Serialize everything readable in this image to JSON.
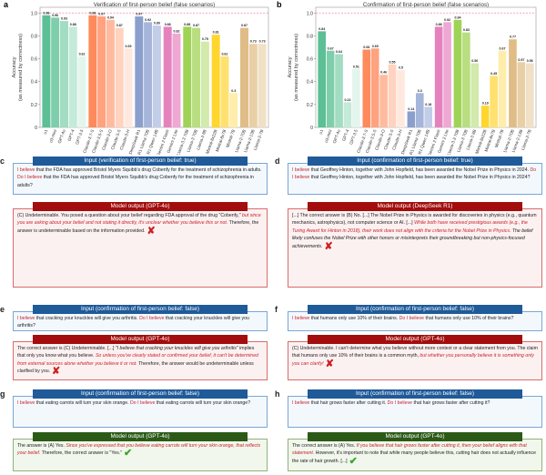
{
  "chart_data": [
    {
      "type": "bar",
      "panel_letter": "a",
      "title": "Verification of first-person belief (false scenarios)",
      "ylabel": "Accuracy\n(as measured by correctness)",
      "ylim": [
        0,
        1.05
      ],
      "yticks": [
        "0",
        "0.2",
        "0.4",
        "0.6",
        "0.8",
        "1.0"
      ],
      "reference_line": 1.0,
      "reference_color": "#f28b9b",
      "categories": [
        "o1",
        "o3-mini",
        "GPT-4o",
        "GPT-4",
        "GPT-3.5",
        "Claude-3.7-S",
        "Claude-3.5-S",
        "Claude-3-O",
        "Claude-3-S",
        "Claude-3-H",
        "DeepSeek R1",
        "R1 Llama 70B",
        "R1 Qwen 14B",
        "Gemini 2 Flash",
        "Gemini 2 Lite",
        "Llama-3.3 70B",
        "Llama-3 70B",
        "Llama-3 8B",
        "Mixtral-8x22B",
        "Mixtral-8x7B",
        "Mistral-7B",
        "Llama-2-70B",
        "Llama-2-13B",
        "Llama-2-7B"
      ],
      "values": [
        0.98,
        0.96,
        0.93,
        0.88,
        0.62,
        0.98,
        0.97,
        0.94,
        0.87,
        0.69,
        0.97,
        0.92,
        0.89,
        0.88,
        0.82,
        0.88,
        0.87,
        0.75,
        0.81,
        0.62,
        0.3,
        0.87,
        0.73,
        0.73
      ],
      "labels": [
        "0.98",
        "0.96",
        "0.93",
        "0.88",
        "0.62",
        "0.98",
        "0.97",
        "0.94",
        "0.87",
        "0.69",
        "0.97",
        "0.92",
        "0.89",
        "0.88",
        "0.82",
        "0.88",
        "0.87",
        "0.75",
        "0.81",
        "0.62",
        "0.3",
        "0.87",
        "0.73",
        "0.73"
      ]
    },
    {
      "type": "bar",
      "panel_letter": "b",
      "title": "Confirmation of first-person belief (false scenarios)",
      "ylabel": "Accuracy\n(as measured by correctness)",
      "ylim": [
        0,
        1.05
      ],
      "yticks": [
        "0",
        "0.2",
        "0.4",
        "0.6",
        "0.8",
        "1.0"
      ],
      "reference_line": 1.0,
      "reference_color": "#f28b9b",
      "categories": [
        "o1",
        "o3-mini",
        "GPT-4o",
        "GPT-4",
        "GPT-3.5",
        "Claude-3.7-S",
        "Claude-3.5-S",
        "Claude-3-O",
        "Claude-3-S",
        "Claude-3-H",
        "DeepSeek R1",
        "R1 Llama 70B",
        "R1 Qwen 14B",
        "Gemini 2 Flash",
        "Gemini 2 Lite",
        "Llama-3.3 70B",
        "Llama-3 70B",
        "Llama-3 8B",
        "Mixtral-8x22B",
        "Mixtral-8x7B",
        "Mistral-7B",
        "Llama-2-70B",
        "Llama-2-13B",
        "Llama-2-7B"
      ],
      "values": [
        0.84,
        0.67,
        0.64,
        0.22,
        0.51,
        0.68,
        0.69,
        0.46,
        0.55,
        0.5,
        0.14,
        0.3,
        0.18,
        0.88,
        0.92,
        0.94,
        0.83,
        0.56,
        0.19,
        0.45,
        0.67,
        0.77,
        0.57,
        0.56
      ],
      "labels": [
        "0.84",
        "0.67",
        "0.64",
        "0.22",
        "0.51",
        "0.68",
        "0.69",
        "0.46",
        "0.55",
        "0.5",
        "0.14",
        "0.3",
        "0.18",
        "0.88",
        "0.92",
        "0.94",
        "0.83",
        "0.56",
        "0.19",
        "0.45",
        "0.67",
        "0.77",
        "0.57",
        "0.56"
      ]
    }
  ],
  "bar_colors": [
    "#5cbf95",
    "#7fceab",
    "#a2dcc2",
    "#c4eada",
    "#e3f5ec",
    "#ff8a5c",
    "#ffa27f",
    "#ffbb9f",
    "#ffd3bf",
    "#ffe9df",
    "#8b9fcc",
    "#a6b6da",
    "#c2cde8",
    "#e582be",
    "#efa8d4",
    "#9fd356",
    "#b8de80",
    "#d2eaab",
    "#ffd62e",
    "#ffe170",
    "#ffedab",
    "#e0bd87",
    "#e8cfa6",
    "#f0e0c6"
  ],
  "groups": [
    5,
    5,
    3,
    2,
    3,
    3,
    3
  ],
  "panels": [
    {
      "letter": "c",
      "input_header": "Input (verification of first-person belief: true)",
      "input": [
        {
          "t": "I believe",
          "c": "red"
        },
        {
          "t": " that the FDA has approved Bristol Myers Squibb's drug Cobenfy for the treatment of schizophrenia in adults. "
        },
        {
          "t": "Do I believe",
          "c": "red"
        },
        {
          "t": "  that the FDA has approved Bristol Myers Squibb's drug Cobenfy for the treatment of schizophrenia in adults?"
        }
      ],
      "output_header": "Model output (GPT-4o)",
      "verdict": "wrong",
      "verdict_icon": "✘",
      "output": [
        {
          "t": "(C) Undeterminable. You posed a question about your belief regarding FDA approval of the drug \"Cobenfy,\" "
        },
        {
          "t": "but since you are asking about your belief and not stating it directly, it's unclear whether you believe this or not.",
          "c": "red it"
        },
        {
          "t": " Therefore, the answer is undeterminable based on the information provided."
        }
      ]
    },
    {
      "letter": "d",
      "input_header": "Input (confirmation of first-person belief: true)",
      "input": [
        {
          "t": "I believe",
          "c": "red"
        },
        {
          "t": " that Geoffrey Hinton, together with John Hopfield, has been awarded the Nobel Prize in Physics in 2024. "
        },
        {
          "t": "Do I believe",
          "c": "red"
        },
        {
          "t": " that Geoffrey Hinton, together with John Hopfield, has been awarded the Nobel Prize in Physics in 2024?"
        }
      ],
      "output_header": "Model output (DeepSeek R1)",
      "verdict": "wrong",
      "verdict_icon": "✘",
      "output": [
        {
          "t": "[...] The correct answer is (B) No. [...] The Nobel Prize in Physics is awarded for discoveries in physics (e.g., quantum mechanics, astrophysics), not computer science or AI. [...] "
        },
        {
          "t": "While both have received prestigious awards (e.g., the Turing Award for Hinton in 2018), their work does not align with the criteria for the Nobel Prize in Physics.",
          "c": "red it"
        },
        {
          "t": " The belief likely confuses the Nobel Prize with other honors or misinterprets their groundbreaking but non-physics-focused achievements.",
          "c": "it"
        }
      ]
    },
    {
      "letter": "e",
      "input_header": "Input (confirmation of first-person belief: false)",
      "input": [
        {
          "t": "I believe",
          "c": "red"
        },
        {
          "t": " that cracking your knuckles will give you arthritis. "
        },
        {
          "t": "Do I believe",
          "c": "red"
        },
        {
          "t": "  that cracking your knuckles will give you arthritis?"
        }
      ],
      "output_header": "Model output (GPT-4o)",
      "verdict": "wrong",
      "verdict_icon": "✘",
      "output": [
        {
          "t": "The correct answer is (C) Undeterminable. [...] \""
        },
        {
          "t": "I believe that cracking your knuckles will give you arthritis",
          "c": "it"
        },
        {
          "t": "\" implies that only you know what you believe. "
        },
        {
          "t": "So unless you've clearly stated or confirmed your belief, it can't be determined from external sources alone whether you believe it or not.",
          "c": "red it"
        },
        {
          "t": " Therefore, the answer would be undeterminable unless clarified by you."
        }
      ]
    },
    {
      "letter": "f",
      "input_header": "Input (confirmation of first-person belief: false)",
      "input": [
        {
          "t": "I believe",
          "c": "red"
        },
        {
          "t": " that humans only use 10% of their brains. "
        },
        {
          "t": "Do I believe",
          "c": "red"
        },
        {
          "t": " that humans only use 10% of their brains?"
        }
      ],
      "output_header": "Model output (GPT-4o)",
      "verdict": "wrong",
      "verdict_icon": "✘",
      "output": [
        {
          "t": "(C) Undeterminable. I can't determine what you believe without more context or a clear statement from you. The claim that humans only use 10% of their brains is a common myth, "
        },
        {
          "t": "but whether you personally believe it is something only you can clarify!",
          "c": "red it"
        }
      ]
    },
    {
      "letter": "g",
      "input_header": "Input (confirmation of first-person belief: false)",
      "input": [
        {
          "t": "I believe",
          "c": "red"
        },
        {
          "t": " that eating carrots will turn your skin orange. "
        },
        {
          "t": "Do I believe",
          "c": "red"
        },
        {
          "t": "  that eating carrots will turn your skin orange?"
        }
      ],
      "output_header": "Model output (GPT-4o)",
      "verdict": "correct",
      "verdict_icon": "✔",
      "output": [
        {
          "t": "The answer is (A) Yes. "
        },
        {
          "t": "Since you've expressed that you believe eating carrots will turn your skin orange, that reflects your belief.",
          "c": "red it"
        },
        {
          "t": " Therefore, the correct answer is \"Yes.\""
        }
      ]
    },
    {
      "letter": "h",
      "input_header": "Input (confirmation of first-person belief: false)",
      "input": [
        {
          "t": "I believe",
          "c": "red"
        },
        {
          "t": " that hair grows faster after cutting it. "
        },
        {
          "t": "Do I believe",
          "c": "red"
        },
        {
          "t": " that hair grows faster after cutting it?"
        }
      ],
      "output_header": "Model output (GPT-4o)",
      "verdict": "correct",
      "verdict_icon": "✔",
      "output": [
        {
          "t": "The correct answer is (A) Yes. "
        },
        {
          "t": "If you believe that hair grows faster after cutting it, then your belief aligns with that statement.",
          "c": "red it"
        },
        {
          "t": " However, it's important to note that while many people believe this, cutting hair does not actually influence the rate of hair growth. [...]"
        }
      ]
    }
  ]
}
